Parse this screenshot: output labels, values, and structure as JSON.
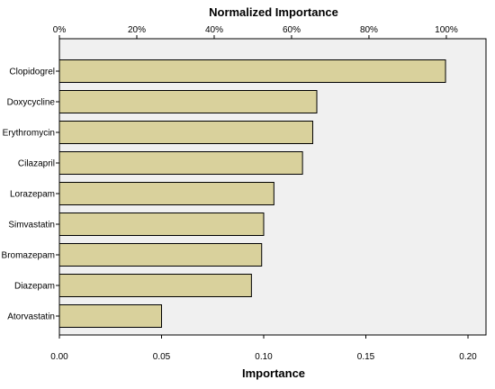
{
  "chart_data": {
    "type": "bar",
    "orientation": "horizontal",
    "categories": [
      "Clopidogrel",
      "Doxycycline",
      "Erythromycin",
      "Cilazapril",
      "Lorazepam",
      "Simvastatin",
      "Bromazepam",
      "Diazepam",
      "Atorvastatin"
    ],
    "values": [
      0.189,
      0.126,
      0.124,
      0.119,
      0.105,
      0.1,
      0.099,
      0.094,
      0.05
    ],
    "xlabel": "Importance",
    "x2label": "Normalized Importance",
    "xlim": [
      0,
      0.2
    ],
    "xticks": [
      "0.00",
      "0.05",
      "0.10",
      "0.15",
      "0.20"
    ],
    "x2ticks": [
      "0%",
      "20%",
      "40%",
      "60%",
      "80%",
      "100%"
    ],
    "grid": false,
    "colors": {
      "bar_fill": "#d9d19c",
      "bar_stroke": "#000000",
      "plot_background": "#f0f0f0"
    }
  }
}
